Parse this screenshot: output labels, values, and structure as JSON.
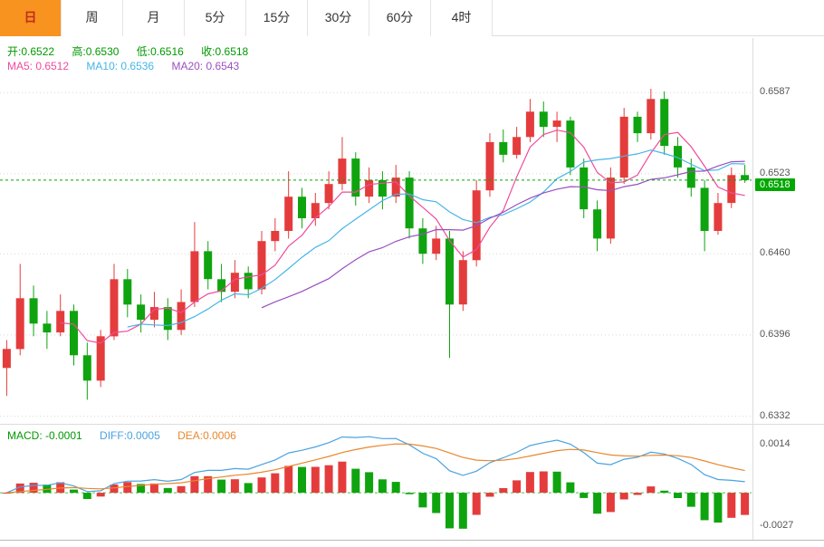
{
  "tabs": [
    {
      "label": "日",
      "active": true
    },
    {
      "label": "周",
      "active": false
    },
    {
      "label": "月",
      "active": false
    },
    {
      "label": "5分",
      "active": false
    },
    {
      "label": "15分",
      "active": false
    },
    {
      "label": "30分",
      "active": false
    },
    {
      "label": "60分",
      "active": false
    },
    {
      "label": "4时",
      "active": false
    }
  ],
  "colors": {
    "up": "#e43c3c",
    "down": "#0fa40f",
    "ma5": "#f04a9c",
    "ma10": "#45b5e8",
    "ma20": "#9a4fc0",
    "diff_line": "#4aa3e0",
    "dea_line": "#e8882e",
    "price_line": "#00a800",
    "price_tag_bg": "#00a800",
    "grid": "#d8d8d8",
    "axis_text": "#555555",
    "tab_active_bg": "#f7931e",
    "tab_active_text": "#c22d1e",
    "legend_green": "#009900"
  },
  "main_legend": {
    "ohlc": [
      {
        "label": "开:",
        "value": "0.6522"
      },
      {
        "label": "高:",
        "value": "0.6530"
      },
      {
        "label": "低:",
        "value": "0.6516"
      },
      {
        "label": "收:",
        "value": "0.6518"
      }
    ],
    "ma": [
      {
        "label": "MA5: ",
        "value": "0.6512"
      },
      {
        "label": "MA10: ",
        "value": "0.6536"
      },
      {
        "label": "MA20: ",
        "value": "0.6543"
      }
    ]
  },
  "macd_legend": [
    {
      "label": "MACD: ",
      "value": "-0.0001"
    },
    {
      "label": "DIFF:",
      "value": "0.0005"
    },
    {
      "label": "DEA:",
      "value": "0.0006"
    }
  ],
  "main_axis_labels": [
    {
      "price": 0.6587,
      "label": "0.6587"
    },
    {
      "price": 0.6523,
      "label": "0.6523"
    },
    {
      "price": 0.646,
      "label": "0.6460"
    },
    {
      "price": 0.6396,
      "label": "0.6396"
    },
    {
      "price": 0.6332,
      "label": "0.6332"
    }
  ],
  "current_price": {
    "price": 0.6518,
    "label": "0.6518"
  },
  "macd_axis_labels": [
    {
      "label": "0.0014"
    },
    {
      "label": "-0.0027"
    }
  ],
  "chart_data": {
    "type": "candlestick",
    "note": "daily K-line with MA5/MA10/MA20 overlays and MACD sub-chart; values estimated from pixels",
    "ylim": [
      0.6326,
      0.663
    ],
    "y_gridlines": [
      0.6587,
      0.6523,
      0.646,
      0.6396,
      0.6332
    ],
    "current_price": 0.6518,
    "ohlc_display": {
      "open": 0.6522,
      "high": 0.653,
      "low": 0.6516,
      "close": 0.6518
    },
    "ma_display": {
      "MA5": 0.6512,
      "MA10": 0.6536,
      "MA20": 0.6543
    },
    "ma_windows": [
      5,
      10,
      20
    ],
    "candles": [
      [
        0.637,
        0.6392,
        0.6348,
        0.6385
      ],
      [
        0.6385,
        0.6452,
        0.638,
        0.6425
      ],
      [
        0.6425,
        0.6435,
        0.6395,
        0.6405
      ],
      [
        0.6405,
        0.6415,
        0.6385,
        0.6398
      ],
      [
        0.6398,
        0.6428,
        0.6395,
        0.6415
      ],
      [
        0.6415,
        0.642,
        0.6372,
        0.638
      ],
      [
        0.638,
        0.639,
        0.6345,
        0.636
      ],
      [
        0.636,
        0.64,
        0.6355,
        0.6395
      ],
      [
        0.6395,
        0.6452,
        0.6392,
        0.644
      ],
      [
        0.644,
        0.6448,
        0.641,
        0.642
      ],
      [
        0.642,
        0.6428,
        0.6398,
        0.6408
      ],
      [
        0.6408,
        0.643,
        0.6402,
        0.6418
      ],
      [
        0.6418,
        0.6425,
        0.6392,
        0.64
      ],
      [
        0.64,
        0.6432,
        0.6396,
        0.6422
      ],
      [
        0.6422,
        0.6485,
        0.6418,
        0.6462
      ],
      [
        0.6462,
        0.647,
        0.6432,
        0.644
      ],
      [
        0.644,
        0.6452,
        0.6422,
        0.643
      ],
      [
        0.643,
        0.6455,
        0.6425,
        0.6445
      ],
      [
        0.6445,
        0.645,
        0.6425,
        0.6432
      ],
      [
        0.6432,
        0.6478,
        0.6428,
        0.647
      ],
      [
        0.647,
        0.6488,
        0.6462,
        0.6478
      ],
      [
        0.6478,
        0.6525,
        0.6472,
        0.6505
      ],
      [
        0.6505,
        0.6512,
        0.648,
        0.6488
      ],
      [
        0.6488,
        0.6508,
        0.6482,
        0.65
      ],
      [
        0.65,
        0.6525,
        0.6495,
        0.6515
      ],
      [
        0.6515,
        0.6552,
        0.651,
        0.6535
      ],
      [
        0.6535,
        0.654,
        0.6498,
        0.6505
      ],
      [
        0.6505,
        0.6528,
        0.65,
        0.6518
      ],
      [
        0.6518,
        0.6525,
        0.6495,
        0.6505
      ],
      [
        0.6505,
        0.653,
        0.65,
        0.652
      ],
      [
        0.652,
        0.6525,
        0.6472,
        0.648
      ],
      [
        0.648,
        0.6488,
        0.6452,
        0.646
      ],
      [
        0.646,
        0.6482,
        0.6455,
        0.6472
      ],
      [
        0.6472,
        0.6478,
        0.6378,
        0.642
      ],
      [
        0.642,
        0.6462,
        0.6415,
        0.6455
      ],
      [
        0.6455,
        0.6518,
        0.645,
        0.651
      ],
      [
        0.651,
        0.6555,
        0.6505,
        0.6548
      ],
      [
        0.6548,
        0.6558,
        0.6532,
        0.6538
      ],
      [
        0.6538,
        0.656,
        0.6535,
        0.6552
      ],
      [
        0.6552,
        0.6582,
        0.6548,
        0.6572
      ],
      [
        0.6572,
        0.658,
        0.6552,
        0.656
      ],
      [
        0.656,
        0.6572,
        0.6548,
        0.6565
      ],
      [
        0.6565,
        0.6568,
        0.6522,
        0.6528
      ],
      [
        0.6528,
        0.6535,
        0.6488,
        0.6495
      ],
      [
        0.6495,
        0.6502,
        0.6462,
        0.6472
      ],
      [
        0.6472,
        0.6528,
        0.6468,
        0.652
      ],
      [
        0.652,
        0.6575,
        0.6515,
        0.6568
      ],
      [
        0.6568,
        0.6572,
        0.6548,
        0.6555
      ],
      [
        0.6555,
        0.659,
        0.655,
        0.6582
      ],
      [
        0.6582,
        0.6588,
        0.6538,
        0.6545
      ],
      [
        0.6545,
        0.6552,
        0.652,
        0.6528
      ],
      [
        0.6528,
        0.6535,
        0.6505,
        0.6512
      ],
      [
        0.6512,
        0.6518,
        0.6462,
        0.6478
      ],
      [
        0.6478,
        0.6508,
        0.6475,
        0.65
      ],
      [
        0.65,
        0.6528,
        0.6496,
        0.6522
      ],
      [
        0.6522,
        0.653,
        0.6516,
        0.6518
      ]
    ],
    "sub_chart": {
      "type": "macd",
      "params": {
        "fast": 12,
        "slow": 26,
        "signal": 9
      },
      "legend_values": {
        "MACD": -0.0001,
        "DIFF": 0.0005,
        "DEA": 0.0006
      },
      "axis_labels": [
        0.0014,
        -0.0027
      ]
    }
  }
}
